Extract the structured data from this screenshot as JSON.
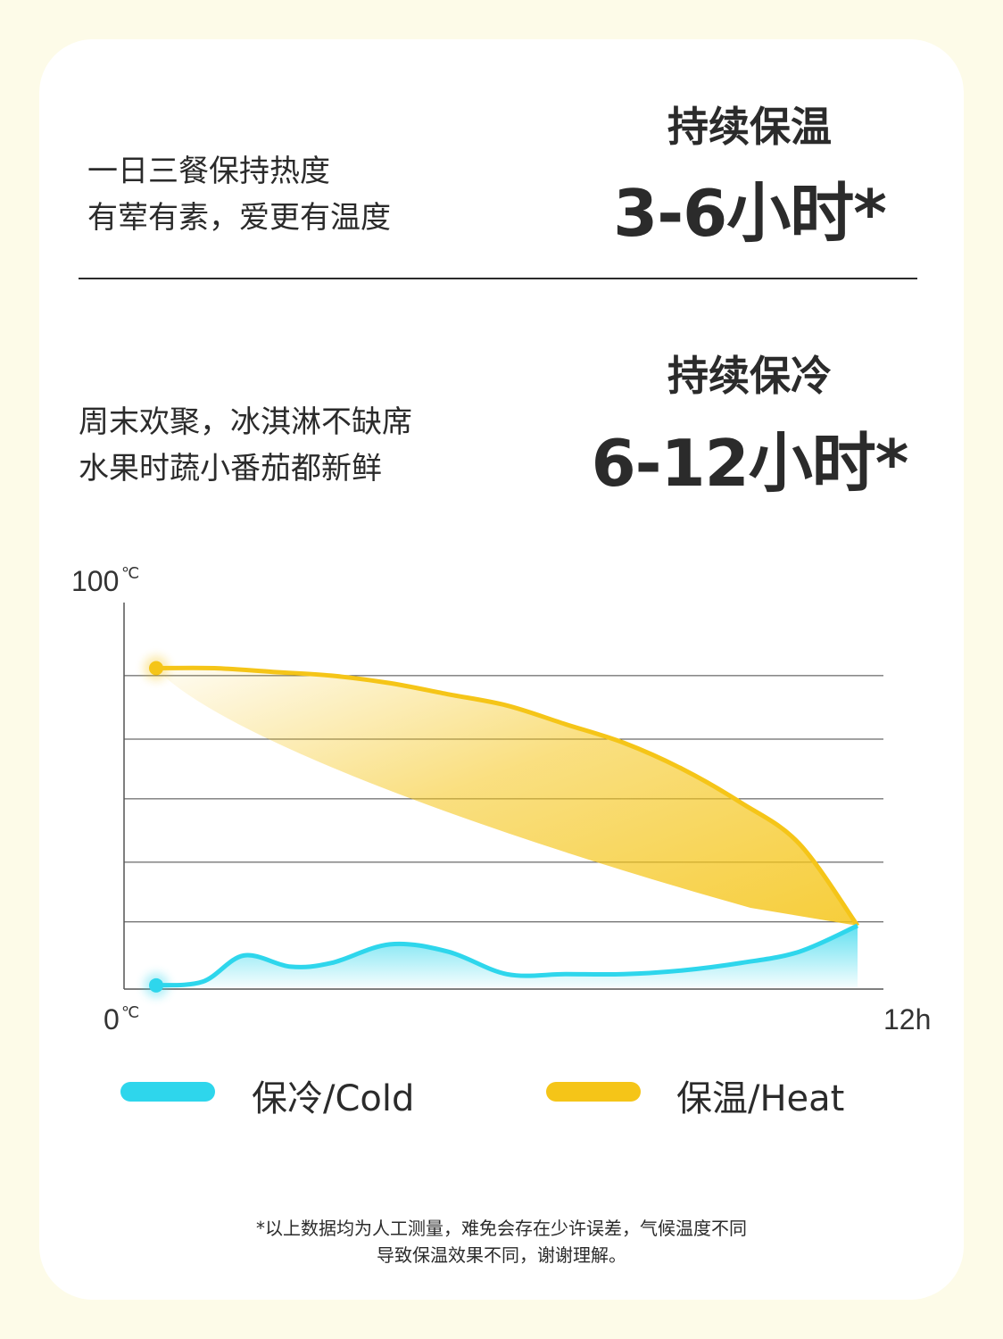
{
  "heat_block": {
    "desc_line1": "一日三餐保持热度",
    "desc_line2": "有荤有素，爱更有温度",
    "headline": "持续保温",
    "duration": "3-6小时*"
  },
  "cold_block": {
    "desc_line1": "周末欢聚，冰淇淋不缺席",
    "desc_line2": "水果时蔬小番茄都新鲜",
    "headline": "持续保冷",
    "duration": "6-12小时*"
  },
  "chart_data": {
    "type": "line",
    "y_top_label": "100",
    "y_bottom_label": "0",
    "y_unit": "℃",
    "x_end_label": "12h",
    "xlim": [
      0,
      12
    ],
    "ylim": [
      0,
      100
    ],
    "grid": "horizontal",
    "series": [
      {
        "name": "保温/Heat",
        "color": "#f5c518",
        "x": [
          0,
          1,
          2,
          3,
          4,
          5,
          6,
          7,
          8,
          9,
          10,
          11,
          12
        ],
        "y": [
          86,
          86,
          85,
          84,
          82,
          79,
          76,
          71,
          66,
          59,
          50,
          39,
          17
        ]
      },
      {
        "name": "保冷/Cold",
        "color": "#2ed6ec",
        "x": [
          0,
          0.8,
          1.5,
          2.3,
          3,
          4,
          5,
          6,
          7,
          8,
          9,
          10,
          11,
          12
        ],
        "y": [
          1,
          2,
          9,
          6,
          7,
          12,
          10,
          4,
          4,
          4,
          5,
          7,
          10,
          17
        ]
      }
    ]
  },
  "legend": {
    "cold_label": "保冷/Cold",
    "heat_label": "保温/Heat"
  },
  "footnote": {
    "line1": "*以上数据均为人工测量，难免会存在少许误差，气候温度不同",
    "line2": "导致保温效果不同，谢谢理解。"
  }
}
